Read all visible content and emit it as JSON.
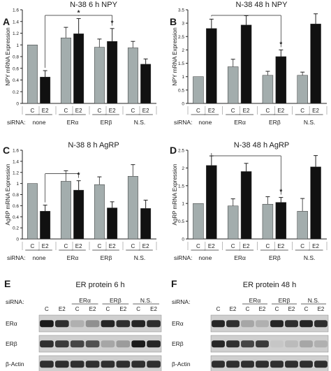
{
  "chart_data": [
    {
      "panel": "A",
      "type": "bar",
      "title": "N-38 6 h NPY",
      "ylabel": "NPY mRNA Expression",
      "ylim": [
        0,
        1.6
      ],
      "yticks": [
        "0",
        "0.2",
        "0.4",
        "0.6",
        "0.8",
        "1",
        "1.2",
        "1.4",
        "1.6"
      ],
      "categories": [
        "C",
        "E2",
        "C",
        "E2",
        "C",
        "E2",
        "C",
        "E2"
      ],
      "values": [
        1.0,
        0.45,
        1.12,
        1.19,
        0.96,
        1.06,
        0.95,
        0.67
      ],
      "errors": [
        0,
        0.11,
        0.18,
        0.26,
        0.14,
        0.22,
        0.11,
        0.09
      ],
      "groups": [
        "none",
        "ERα",
        "ERβ",
        "N.S."
      ],
      "row_label": "siRNA:",
      "significance": [
        {
          "from": 1,
          "to": [
            3,
            5
          ],
          "mark": "*"
        }
      ]
    },
    {
      "panel": "B",
      "type": "bar",
      "title": "N-38 48 h NPY",
      "ylabel": "NPY mRNA Expression",
      "ylim": [
        0,
        3.5
      ],
      "yticks": [
        "0",
        "0.5",
        "1",
        "1.5",
        "2",
        "2.5",
        "3",
        "3.5"
      ],
      "categories": [
        "C",
        "E2",
        "C",
        "E2",
        "C",
        "E2",
        "C",
        "E2"
      ],
      "values": [
        1.0,
        2.8,
        1.37,
        2.93,
        1.05,
        1.75,
        1.05,
        2.97
      ],
      "errors": [
        0,
        0.35,
        0.28,
        0.35,
        0.15,
        0.25,
        0.12,
        0.38
      ],
      "groups": [
        "none",
        "ERα",
        "ERβ",
        "N.S."
      ],
      "row_label": "siRNA:",
      "significance": [
        {
          "from": 1,
          "to": [
            5
          ],
          "mark": "*"
        }
      ]
    },
    {
      "panel": "C",
      "type": "bar",
      "title": "N-38 8 h AgRP",
      "ylabel": "AgRP mRNA Expression",
      "ylim": [
        0,
        1.6
      ],
      "yticks": [
        "0",
        "0.2",
        "0.4",
        "0.6",
        "0.8",
        "1",
        "1.2",
        "1.4",
        "1.6"
      ],
      "categories": [
        "C",
        "E2",
        "C",
        "E2",
        "C",
        "E2",
        "C",
        "E2"
      ],
      "values": [
        1.0,
        0.5,
        1.04,
        0.88,
        0.98,
        0.56,
        1.13,
        0.55
      ],
      "errors": [
        0,
        0.11,
        0.19,
        0.17,
        0.14,
        0.11,
        0.21,
        0.15
      ],
      "groups": [
        "none",
        "ERα",
        "ERβ",
        "N.S."
      ],
      "row_label": "siRNA:",
      "significance": [
        {
          "from": 1,
          "to": [
            3
          ],
          "mark": "*"
        }
      ]
    },
    {
      "panel": "D",
      "type": "bar",
      "title": "N-38 48 h AgRP",
      "ylabel": "AgRP mRNA Expression",
      "ylim": [
        0,
        2.5
      ],
      "yticks": [
        "0",
        "0.5",
        "1",
        "1.5",
        "2",
        "2.5"
      ],
      "categories": [
        "C",
        "E2",
        "C",
        "E2",
        "C",
        "E2",
        "C",
        "E2"
      ],
      "values": [
        1.0,
        2.07,
        0.93,
        1.9,
        0.98,
        1.03,
        0.78,
        2.03
      ],
      "errors": [
        0,
        0.27,
        0.2,
        0.23,
        0.21,
        0.14,
        0.36,
        0.32
      ],
      "groups": [
        "none",
        "ERα",
        "ERβ",
        "N.S."
      ],
      "row_label": "siRNA:",
      "significance": [
        {
          "from": 1,
          "to": [
            5
          ],
          "mark": "*"
        }
      ]
    }
  ],
  "blots": [
    {
      "panel": "E",
      "title": "ER protein 6 h",
      "row_label": "siRNA:",
      "lane_labels": [
        "C",
        "E2",
        "C",
        "E2",
        "C",
        "E2",
        "C",
        "E2"
      ],
      "groups": [
        "ERα",
        "ERβ",
        "N.S."
      ],
      "rows": [
        {
          "label": "ERα",
          "intensity": [
            0.95,
            0.85,
            0.25,
            0.4,
            0.9,
            0.85,
            0.9,
            0.85
          ]
        },
        {
          "label": "ERβ",
          "intensity": [
            0.85,
            0.8,
            0.75,
            0.7,
            0.3,
            0.35,
            0.95,
            0.9
          ]
        },
        {
          "label": "β-Actin",
          "intensity": [
            0.85,
            0.85,
            0.85,
            0.85,
            0.85,
            0.85,
            0.85,
            0.85
          ]
        }
      ]
    },
    {
      "panel": "F",
      "title": "ER protein 48 h",
      "row_label": "siRNA:",
      "lane_labels": [
        "C",
        "E2",
        "C",
        "E2",
        "C",
        "E2",
        "C",
        "E2"
      ],
      "groups": [
        "ERα",
        "ERβ",
        "N.S."
      ],
      "rows": [
        {
          "label": "ERα",
          "intensity": [
            0.9,
            0.85,
            0.3,
            0.25,
            0.9,
            0.85,
            0.9,
            0.85
          ]
        },
        {
          "label": "ERβ",
          "intensity": [
            0.9,
            0.85,
            0.75,
            0.8,
            0.15,
            0.2,
            0.3,
            0.25
          ]
        },
        {
          "label": "β-Actin",
          "intensity": [
            0.85,
            0.85,
            0.85,
            0.85,
            0.85,
            0.85,
            0.85,
            0.85
          ]
        }
      ]
    }
  ],
  "colors": {
    "control": "#a3adad",
    "e2": "#111111"
  }
}
